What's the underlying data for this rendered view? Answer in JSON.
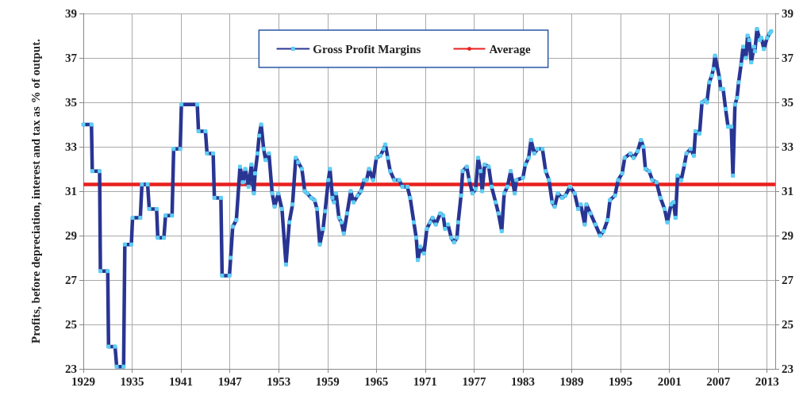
{
  "chart_data": {
    "type": "line",
    "ylabel": "Profits, before depreciation, interest and tax as % of output.",
    "x": [
      1929,
      1930,
      1930.1,
      1931,
      1931.1,
      1932,
      1932.1,
      1932.9,
      1933.1,
      1933.95,
      1934.1,
      1934.9,
      1935.05,
      1936,
      1936.2,
      1936.9,
      1937.1,
      1938,
      1938.15,
      1938.9,
      1939.1,
      1939.9,
      1940.1,
      1940.9,
      1941.05,
      1943,
      1943.15,
      1944,
      1944.2,
      1944.95,
      1945.1,
      1945.9,
      1946.05,
      1946.95,
      1947.1,
      1947.35,
      1947.8,
      1948.25,
      1948.6,
      1948.9,
      1949.3,
      1949.65,
      1949.95,
      1950.1,
      1950.4,
      1950.6,
      1950.85,
      1951.15,
      1951.4,
      1951.8,
      1952.2,
      1952.5,
      1952.95,
      1953.4,
      1953.9,
      1954.3,
      1954.7,
      1955.1,
      1955.4,
      1955.85,
      1956.2,
      1956.5,
      1957,
      1957.4,
      1957.7,
      1958.05,
      1958.45,
      1958.7,
      1959.1,
      1959.3,
      1959.6,
      1959.8,
      1960.05,
      1960.4,
      1960.7,
      1961,
      1961.4,
      1961.85,
      1962.2,
      1962.7,
      1963.1,
      1963.5,
      1963.8,
      1964.1,
      1964.6,
      1965,
      1965.5,
      1965.9,
      1966.1,
      1966.4,
      1966.7,
      1967.2,
      1967.8,
      1968.2,
      1968.8,
      1969.15,
      1969.6,
      1969.9,
      1970.1,
      1970.4,
      1970.85,
      1971.2,
      1971.6,
      1971.9,
      1972.3,
      1972.85,
      1973.2,
      1973.45,
      1973.8,
      1974.2,
      1974.55,
      1974.9,
      1975.05,
      1975.4,
      1975.6,
      1976.1,
      1976.4,
      1976.8,
      1977.2,
      1977.5,
      1977.8,
      1978,
      1978.3,
      1978.8,
      1979.15,
      1979.65,
      1980,
      1980.4,
      1980.7,
      1981.1,
      1981.5,
      1982,
      1982.2,
      1983,
      1983.3,
      1983.7,
      1984,
      1984.4,
      1984.8,
      1985.4,
      1985.8,
      1986.2,
      1986.6,
      1986.9,
      1987.3,
      1987.8,
      1988.2,
      1988.8,
      1989.35,
      1989.8,
      1990.1,
      1990.6,
      1990.8,
      1991.3,
      1991.9,
      1992.5,
      1992.9,
      1993.4,
      1993.7,
      1994.3,
      1994.7,
      1995.2,
      1995.5,
      1996.2,
      1996.6,
      1997.1,
      1997.5,
      1997.8,
      1998.05,
      1998.5,
      1998.9,
      1999.4,
      1999.9,
      2000.4,
      2000.75,
      2001.2,
      2001.5,
      2001.75,
      2002,
      2002.45,
      2002.85,
      2003.1,
      2003.6,
      2004,
      2004.2,
      2004.7,
      2005,
      2005.4,
      2005.6,
      2005.9,
      2006.2,
      2006.4,
      2006.6,
      2007.15,
      2007.3,
      2007.6,
      2007.9,
      2008.2,
      2008.6,
      2008.8,
      2009.05,
      2009.3,
      2009.5,
      2009.8,
      2010.05,
      2010.4,
      2010.6,
      2010.8,
      2011.05,
      2011.4,
      2011.5,
      2011.75,
      2012.1,
      2012.3,
      2012.6,
      2013,
      2013.3,
      2013.5
    ],
    "series": [
      {
        "name": "Gross Profit Margins",
        "color": "#283593",
        "values": [
          34.0,
          34.0,
          31.9,
          31.9,
          27.4,
          27.4,
          24.0,
          24.0,
          23.1,
          23.1,
          28.6,
          28.6,
          29.8,
          29.8,
          31.3,
          31.3,
          30.2,
          30.2,
          28.9,
          28.9,
          29.9,
          29.9,
          32.9,
          32.9,
          34.9,
          34.9,
          33.7,
          33.7,
          32.7,
          32.7,
          30.7,
          30.7,
          27.2,
          27.2,
          28.0,
          29.4,
          29.7,
          32.1,
          31.4,
          32.0,
          31.2,
          32.2,
          30.9,
          31.8,
          32.7,
          33.5,
          34.0,
          32.9,
          32.4,
          32.7,
          30.9,
          30.3,
          30.9,
          30.2,
          27.7,
          29.6,
          30.4,
          32.5,
          32.3,
          32.0,
          31.0,
          30.9,
          30.7,
          30.6,
          30.2,
          28.6,
          29.3,
          30.1,
          31.5,
          32.0,
          30.7,
          30.5,
          30.9,
          29.8,
          29.6,
          29.1,
          30.0,
          31.0,
          30.5,
          30.8,
          31.0,
          31.5,
          31.5,
          32.0,
          31.5,
          32.5,
          32.6,
          32.9,
          33.1,
          32.5,
          31.9,
          31.5,
          31.5,
          31.2,
          31.2,
          30.7,
          29.6,
          28.9,
          27.9,
          28.5,
          28.2,
          29.3,
          29.6,
          29.8,
          29.5,
          30.0,
          29.9,
          29.3,
          29.5,
          28.9,
          28.7,
          28.9,
          29.6,
          30.8,
          31.9,
          32.1,
          31.5,
          30.9,
          31.1,
          32.5,
          31.9,
          31.0,
          32.2,
          32.1,
          31.2,
          30.5,
          30.0,
          29.2,
          30.9,
          31.2,
          31.9,
          30.9,
          31.5,
          31.6,
          32.2,
          32.5,
          33.3,
          32.7,
          32.9,
          32.9,
          31.9,
          31.5,
          30.5,
          30.3,
          30.9,
          30.7,
          30.8,
          31.2,
          30.9,
          30.2,
          30.4,
          29.5,
          30.4,
          30.0,
          29.5,
          29.0,
          29.2,
          29.7,
          30.6,
          30.8,
          31.5,
          31.8,
          32.5,
          32.7,
          32.5,
          32.8,
          33.3,
          33.0,
          32.0,
          31.9,
          31.5,
          31.4,
          30.7,
          30.2,
          29.6,
          30.4,
          30.5,
          29.8,
          31.7,
          31.5,
          32.2,
          32.7,
          32.9,
          32.6,
          33.7,
          33.6,
          35.0,
          35.1,
          35.0,
          35.9,
          36.2,
          36.5,
          37.1,
          36.1,
          35.6,
          35.6,
          34.7,
          33.9,
          33.9,
          31.7,
          34.9,
          35.2,
          35.9,
          36.7,
          37.5,
          37.0,
          38.0,
          37.8,
          36.8,
          37.5,
          37.3,
          38.3,
          37.8,
          37.9,
          37.4,
          37.9,
          38.1,
          38.2
        ]
      }
    ],
    "ref_lines": [
      {
        "axis": "y",
        "value": 31.3,
        "label": "Average",
        "color": "#e8211f"
      }
    ],
    "xlim": [
      1929,
      2014
    ],
    "xticks": [
      1929,
      1935,
      1941,
      1947,
      1953,
      1959,
      1965,
      1971,
      1977,
      1983,
      1989,
      1995,
      2001,
      2007,
      2013
    ],
    "ylim": [
      23,
      39
    ],
    "yticks": [
      23,
      25,
      27,
      29,
      31,
      33,
      35,
      37,
      39
    ],
    "y2lim": [
      23,
      39
    ],
    "y2ticks": [
      23,
      25,
      27,
      29,
      31,
      33,
      35,
      37,
      39
    ],
    "grid": true,
    "legend": "top",
    "marker": "square",
    "line_style": "solid"
  }
}
